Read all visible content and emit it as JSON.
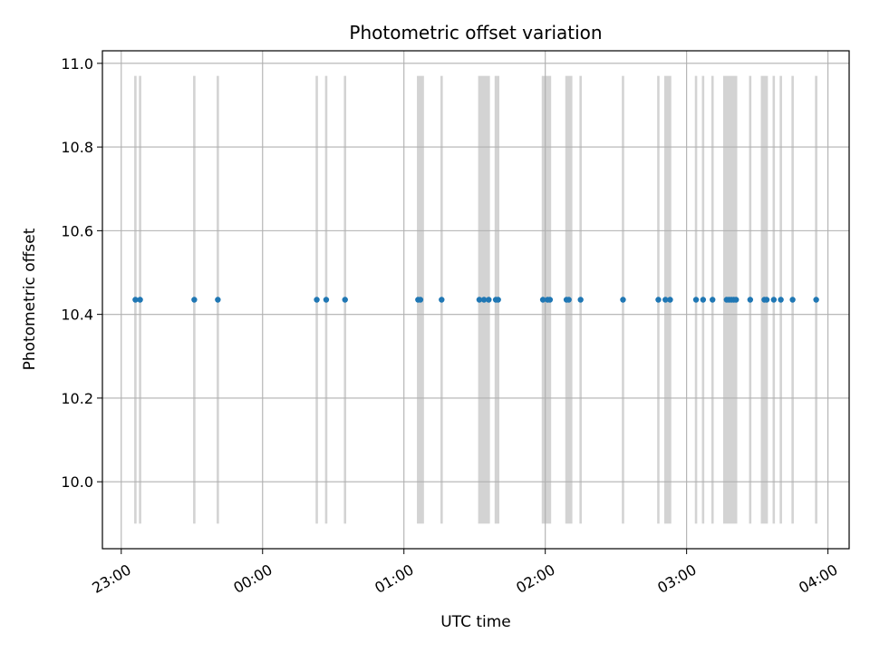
{
  "chart_data": {
    "type": "scatter",
    "title": "Photometric offset variation",
    "xlabel": "UTC time",
    "ylabel": "Photometric offset",
    "xlim": [
      "22:52",
      "04:09"
    ],
    "ylim": [
      9.84,
      11.03
    ],
    "x_tick_values": [
      "23:00",
      "00:00",
      "01:00",
      "02:00",
      "03:00",
      "04:00"
    ],
    "x_tick_labels": [
      "23:00",
      "00:00",
      "01:00",
      "02:00",
      "03:00",
      "04:00"
    ],
    "y_ticks": [
      10.0,
      10.2,
      10.4,
      10.6,
      10.8,
      11.0
    ],
    "y_tick_labels": [
      "10.0",
      "10.2",
      "10.4",
      "10.6",
      "10.8",
      "11.0"
    ],
    "grid": true,
    "point_color": "#1f77b4",
    "band_color": "#d3d3d3",
    "band_y_range": [
      9.9,
      10.97
    ],
    "series": [
      {
        "values": [
          {
            "x": "23:06",
            "y": 10.435
          },
          {
            "x": "23:08",
            "y": 10.435
          },
          {
            "x": "23:31",
            "y": 10.435
          },
          {
            "x": "23:41",
            "y": 10.435
          },
          {
            "x": "00:23",
            "y": 10.435
          },
          {
            "x": "00:27",
            "y": 10.435
          },
          {
            "x": "00:35",
            "y": 10.435
          },
          {
            "x": "01:06",
            "y": 10.435
          },
          {
            "x": "01:07",
            "y": 10.435
          },
          {
            "x": "01:16",
            "y": 10.435
          },
          {
            "x": "01:32",
            "y": 10.435
          },
          {
            "x": "01:34",
            "y": 10.435
          },
          {
            "x": "01:36",
            "y": 10.435
          },
          {
            "x": "01:39",
            "y": 10.435
          },
          {
            "x": "01:40",
            "y": 10.435
          },
          {
            "x": "01:59",
            "y": 10.435
          },
          {
            "x": "02:01",
            "y": 10.435
          },
          {
            "x": "02:02",
            "y": 10.435
          },
          {
            "x": "02:09",
            "y": 10.435
          },
          {
            "x": "02:10",
            "y": 10.435
          },
          {
            "x": "02:15",
            "y": 10.435
          },
          {
            "x": "02:33",
            "y": 10.435
          },
          {
            "x": "02:48",
            "y": 10.435
          },
          {
            "x": "02:51",
            "y": 10.435
          },
          {
            "x": "02:53",
            "y": 10.435
          },
          {
            "x": "03:04",
            "y": 10.435
          },
          {
            "x": "03:07",
            "y": 10.435
          },
          {
            "x": "03:11",
            "y": 10.435
          },
          {
            "x": "03:17",
            "y": 10.435
          },
          {
            "x": "03:18",
            "y": 10.435
          },
          {
            "x": "03:19",
            "y": 10.435
          },
          {
            "x": "03:20",
            "y": 10.435
          },
          {
            "x": "03:21",
            "y": 10.435
          },
          {
            "x": "03:27",
            "y": 10.435
          },
          {
            "x": "03:33",
            "y": 10.435
          },
          {
            "x": "03:34",
            "y": 10.435
          },
          {
            "x": "03:37",
            "y": 10.435
          },
          {
            "x": "03:40",
            "y": 10.435
          },
          {
            "x": "03:45",
            "y": 10.435
          },
          {
            "x": "03:55",
            "y": 10.435
          }
        ]
      }
    ],
    "bands": [
      {
        "x0": "23:05.5",
        "x1": "23:06.5"
      },
      {
        "x0": "23:07.5",
        "x1": "23:08.5"
      },
      {
        "x0": "23:30.5",
        "x1": "23:31.5"
      },
      {
        "x0": "23:40.5",
        "x1": "23:41.5"
      },
      {
        "x0": "00:22.5",
        "x1": "00:23.5"
      },
      {
        "x0": "00:26.5",
        "x1": "00:27.5"
      },
      {
        "x0": "00:34.5",
        "x1": "00:35.5"
      },
      {
        "x0": "01:05.5",
        "x1": "01:08.5"
      },
      {
        "x0": "01:15.5",
        "x1": "01:16.5"
      },
      {
        "x0": "01:31.5",
        "x1": "01:36.5"
      },
      {
        "x0": "01:38.5",
        "x1": "01:40.5"
      },
      {
        "x0": "01:58.5",
        "x1": "02:02.5"
      },
      {
        "x0": "02:08.5",
        "x1": "02:11.5"
      },
      {
        "x0": "02:14.5",
        "x1": "02:15.5"
      },
      {
        "x0": "02:32.5",
        "x1": "02:33.5"
      },
      {
        "x0": "02:47.5",
        "x1": "02:48.5"
      },
      {
        "x0": "02:50.5",
        "x1": "02:53.5"
      },
      {
        "x0": "03:03.5",
        "x1": "03:04.5"
      },
      {
        "x0": "03:06.5",
        "x1": "03:07.5"
      },
      {
        "x0": "03:10.5",
        "x1": "03:11.5"
      },
      {
        "x0": "03:15.5",
        "x1": "03:21.5"
      },
      {
        "x0": "03:26.5",
        "x1": "03:27.5"
      },
      {
        "x0": "03:31.5",
        "x1": "03:34.5"
      },
      {
        "x0": "03:36.5",
        "x1": "03:37.5"
      },
      {
        "x0": "03:39.5",
        "x1": "03:40.5"
      },
      {
        "x0": "03:44.5",
        "x1": "03:45.5"
      },
      {
        "x0": "03:54.5",
        "x1": "03:55.5"
      }
    ]
  }
}
